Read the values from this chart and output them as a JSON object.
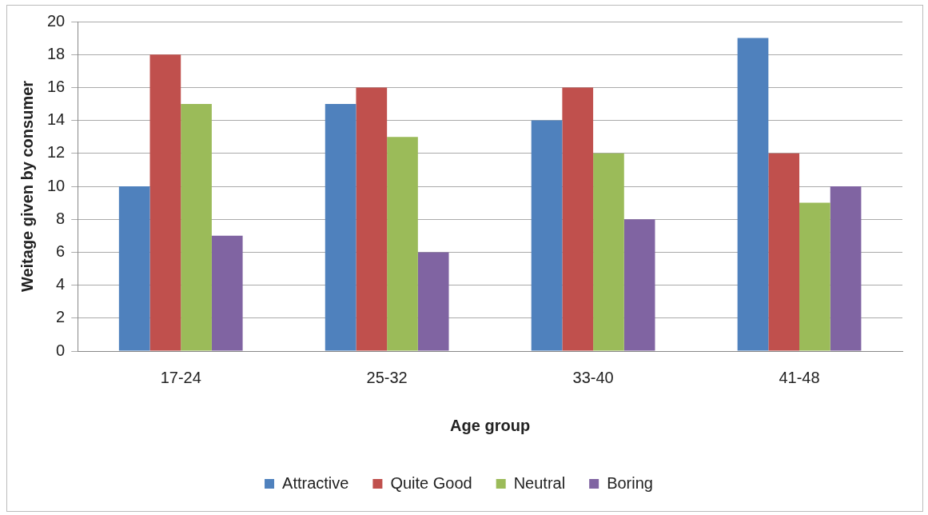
{
  "chart_data": {
    "type": "bar",
    "xlabel": "Age group",
    "ylabel": "Weitage given by consumer",
    "categories": [
      "17-24",
      "25-32",
      "33-40",
      "41-48"
    ],
    "series": [
      {
        "name": "Attractive",
        "color": "#4f81bd",
        "values": [
          10,
          15,
          14,
          19
        ]
      },
      {
        "name": "Quite Good",
        "color": "#c0504d",
        "values": [
          18,
          16,
          16,
          12
        ]
      },
      {
        "name": "Neutral",
        "color": "#9bbb59",
        "values": [
          15,
          13,
          12,
          9
        ]
      },
      {
        "name": "Boring",
        "color": "#8064a2",
        "values": [
          7,
          6,
          8,
          10
        ]
      }
    ],
    "ylim": [
      0,
      20
    ],
    "yticks": [
      0,
      2,
      4,
      6,
      8,
      10,
      12,
      14,
      16,
      18,
      20
    ],
    "grid": "y",
    "legend": "bottom"
  }
}
